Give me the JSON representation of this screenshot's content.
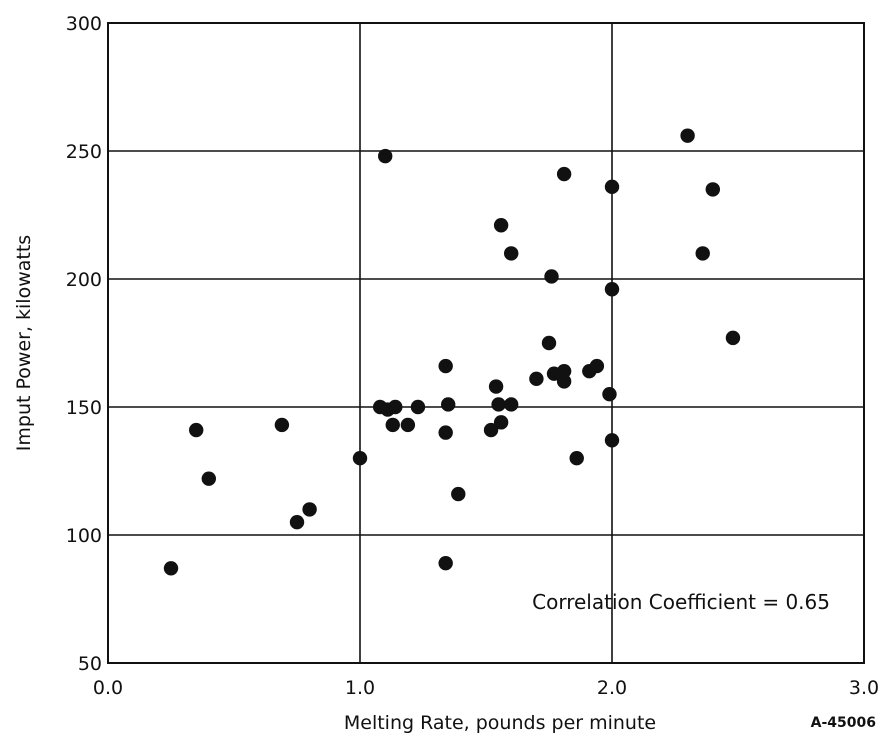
{
  "chart_data": {
    "type": "scatter",
    "xlabel": "Melting Rate, pounds per minute",
    "ylabel": "Imput Power, kilowatts",
    "xlim": [
      0.0,
      3.0
    ],
    "ylim": [
      50,
      300
    ],
    "x_ticks": [
      0.0,
      1.0,
      2.0,
      3.0
    ],
    "x_tick_labels": [
      "0.0",
      "1.0",
      "2.0",
      "3.0"
    ],
    "y_ticks": [
      50,
      100,
      150,
      200,
      250,
      300
    ],
    "y_tick_labels": [
      "50",
      "100",
      "150",
      "200",
      "250",
      "300"
    ],
    "grid": true,
    "annotation": "Correlation Coefficient = 0.65",
    "figure_id": "A-45006",
    "marker_color": "#111111",
    "series": [
      {
        "points": [
          [
            0.25,
            87
          ],
          [
            0.35,
            141
          ],
          [
            0.4,
            122
          ],
          [
            0.69,
            143
          ],
          [
            0.75,
            105
          ],
          [
            0.8,
            110
          ],
          [
            1.0,
            130
          ],
          [
            1.08,
            150
          ],
          [
            1.1,
            248
          ],
          [
            1.11,
            149
          ],
          [
            1.13,
            143
          ],
          [
            1.14,
            150
          ],
          [
            1.19,
            143
          ],
          [
            1.23,
            150
          ],
          [
            1.34,
            89
          ],
          [
            1.34,
            166
          ],
          [
            1.34,
            140
          ],
          [
            1.35,
            151
          ],
          [
            1.39,
            116
          ],
          [
            1.52,
            141
          ],
          [
            1.54,
            158
          ],
          [
            1.55,
            151
          ],
          [
            1.56,
            144
          ],
          [
            1.56,
            221
          ],
          [
            1.6,
            210
          ],
          [
            1.6,
            151
          ],
          [
            1.7,
            161
          ],
          [
            1.75,
            175
          ],
          [
            1.76,
            201
          ],
          [
            1.77,
            163
          ],
          [
            1.8,
            163
          ],
          [
            1.81,
            241
          ],
          [
            1.81,
            164
          ],
          [
            1.81,
            160
          ],
          [
            1.86,
            130
          ],
          [
            1.91,
            164
          ],
          [
            1.94,
            166
          ],
          [
            1.99,
            155
          ],
          [
            2.0,
            196
          ],
          [
            2.0,
            236
          ],
          [
            2.0,
            137
          ],
          [
            2.3,
            256
          ],
          [
            2.36,
            210
          ],
          [
            2.4,
            235
          ],
          [
            2.48,
            177
          ]
        ]
      }
    ]
  }
}
